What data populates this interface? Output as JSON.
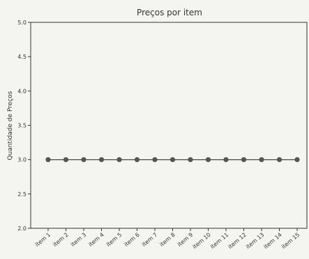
{
  "chart_data": {
    "type": "line",
    "title": "Preços por item",
    "xlabel": "",
    "ylabel": "Quantidade de Preços",
    "categories": [
      "item 1",
      "item 2",
      "item 3",
      "item 4",
      "item 5",
      "item 6",
      "item 7",
      "item 8",
      "item 9",
      "item 10",
      "item 11",
      "item 12",
      "item 13",
      "item 14",
      "item 15"
    ],
    "series": [
      {
        "values": [
          3,
          3,
          3,
          3,
          3,
          3,
          3,
          3,
          3,
          3,
          3,
          3,
          3,
          3,
          3
        ]
      }
    ],
    "ylim": [
      2.0,
      5.0
    ],
    "yticks": [
      "2.0",
      "2.5",
      "3.0",
      "3.5",
      "4.0",
      "4.5",
      "5.0"
    ],
    "grid": false,
    "colors": {
      "line": "#555555",
      "marker": "#555555",
      "axis": "#333333",
      "background": "#f4f4f1"
    }
  }
}
